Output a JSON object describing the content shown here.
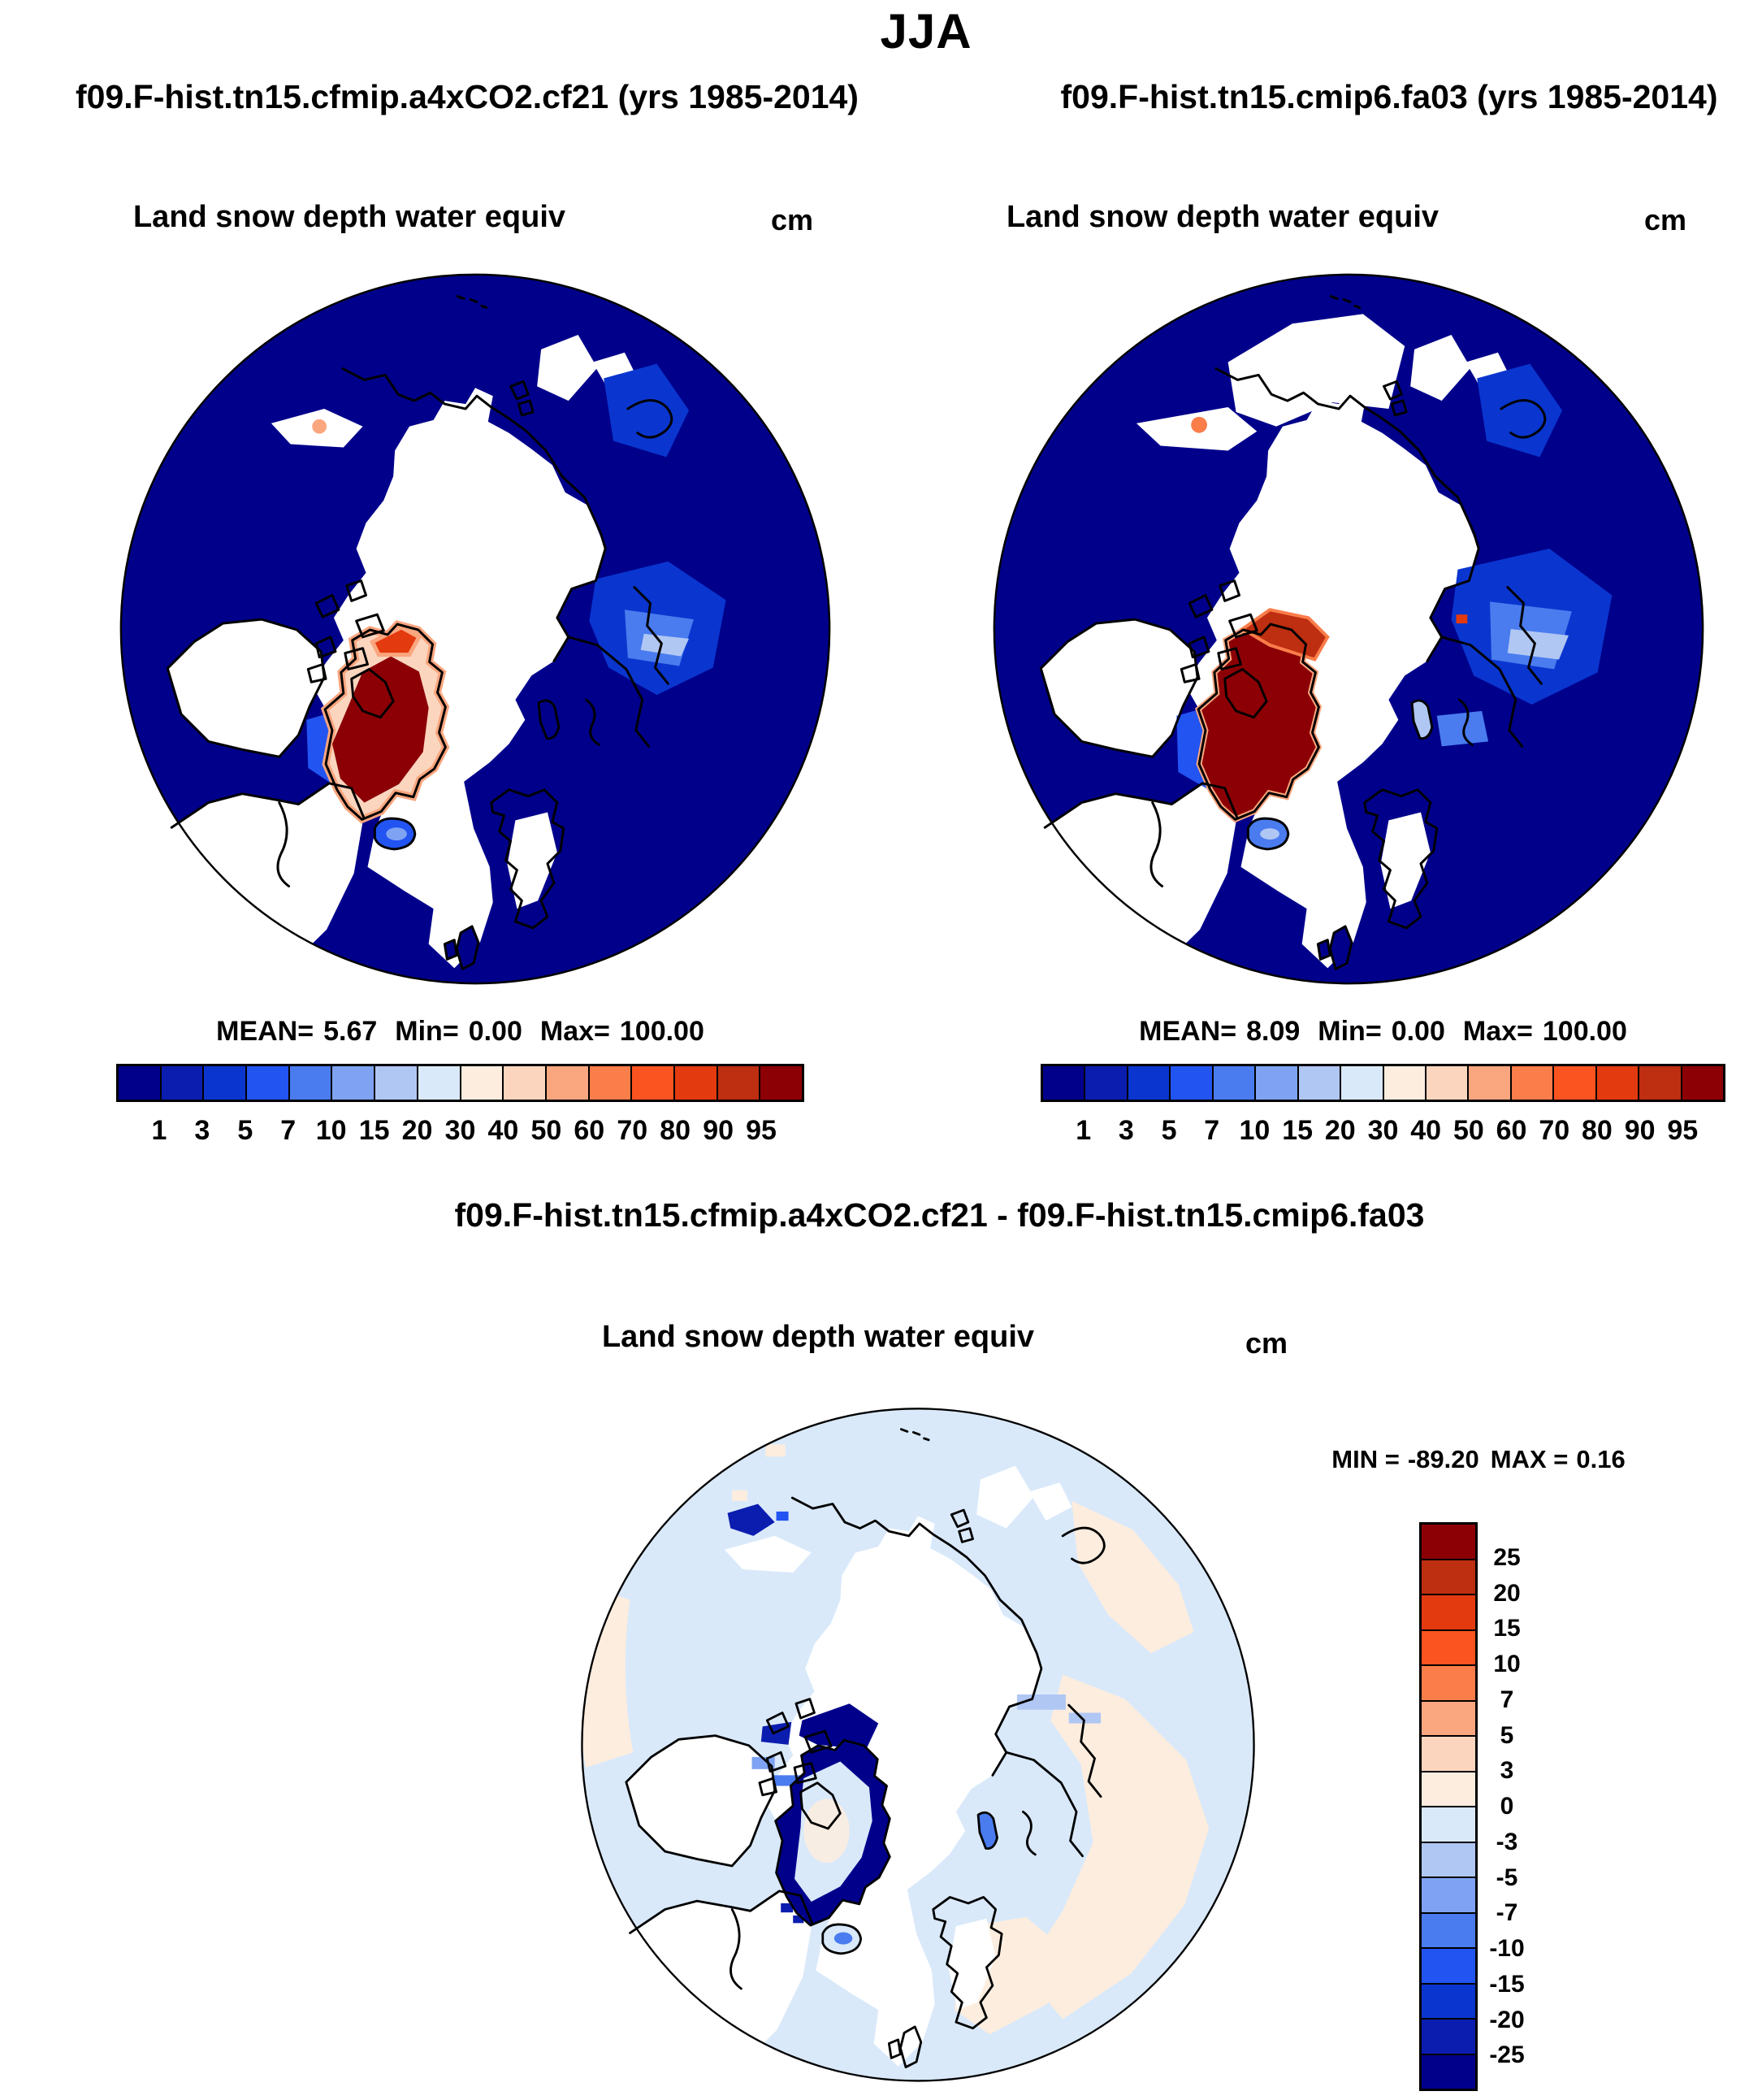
{
  "season": "JJA",
  "panels": {
    "left": {
      "run_title": "f09.F-hist.tn15.cfmip.a4xCO2.cf21 (yrs 1985-2014)",
      "field_title": "Land snow depth water equiv",
      "units": "cm",
      "stats": {
        "mean_label": "MEAN=",
        "mean": "5.67",
        "min_label": "Min=",
        "min": "0.00",
        "max_label": "Max=",
        "max": "100.00"
      }
    },
    "right": {
      "run_title": "f09.F-hist.tn15.cmip6.fa03 (yrs 1985-2014)",
      "field_title": "Land snow depth water equiv",
      "units": "cm",
      "stats": {
        "mean_label": "MEAN=",
        "mean": "8.09",
        "min_label": "Min=",
        "min": "0.00",
        "max_label": "Max=",
        "max": "100.00"
      }
    },
    "diff": {
      "run_title": "f09.F-hist.tn15.cfmip.a4xCO2.cf21 - f09.F-hist.tn15.cmip6.fa03",
      "field_title": "Land snow depth water equiv",
      "units": "cm",
      "stats": {
        "min_label": "MIN =",
        "min": "-89.20",
        "max_label": "MAX =",
        "max": "0.16"
      }
    }
  },
  "palette": [
    "#00008B",
    "#0B1DAF",
    "#0A36CF",
    "#2254F2",
    "#4A7CEF",
    "#7FA3F2",
    "#B0C7F4",
    "#D9E9FA",
    "#FDEDDE",
    "#FBD5BE",
    "#FAA67F",
    "#FA7D4A",
    "#FB5420",
    "#E43A0F",
    "#BE2E10",
    "#8C0005"
  ],
  "colorbars": {
    "main": {
      "orientation": "horizontal",
      "levels": [
        "1",
        "3",
        "5",
        "7",
        "10",
        "15",
        "20",
        "30",
        "40",
        "50",
        "60",
        "70",
        "80",
        "90",
        "95"
      ]
    },
    "diff": {
      "orientation": "vertical",
      "reverse": true,
      "levels": [
        "25",
        "20",
        "15",
        "10",
        "7",
        "5",
        "3",
        "0",
        "-3",
        "-5",
        "-7",
        "-10",
        "-15",
        "-20",
        "-25"
      ]
    }
  },
  "chart_data": [
    {
      "type": "heatmap",
      "panel": "top-left",
      "title": "f09.F-hist.tn15.cfmip.a4xCO2.cf21 (yrs 1985-2014)",
      "field": "Land snow depth water equiv",
      "units": "cm",
      "projection": "north polar stereographic",
      "stats": {
        "mean": 5.67,
        "min": 0.0,
        "max": 100.0
      },
      "contour_levels": [
        1,
        3,
        5,
        7,
        10,
        15,
        20,
        30,
        40,
        50,
        60,
        70,
        80,
        90,
        95
      ],
      "palette_direction": "dark blue (low) to dark red (high)",
      "legend_position": "horizontal bar below map",
      "notable_features": [
        "values >95 (dark red) over Greenland ice sheet with orange fringe",
        "lowest bin (dark navy) covering oceans and most low-elevation land",
        "white (below 1 / masked) over central Arctic, Alaska, northern Canada and Norwegian Sea",
        "light-to-medium blue patch over eastern Siberia uplands",
        "red strip over northern Canadian archipelago; Iceland shown as small blue patch"
      ]
    },
    {
      "type": "heatmap",
      "panel": "top-right",
      "title": "f09.F-hist.tn15.cmip6.fa03 (yrs 1985-2014)",
      "field": "Land snow depth water equiv",
      "units": "cm",
      "projection": "north polar stereographic",
      "stats": {
        "mean": 8.09,
        "min": 0.0,
        "max": 100.0
      },
      "contour_levels": [
        1,
        3,
        5,
        7,
        10,
        15,
        20,
        30,
        40,
        50,
        60,
        70,
        80,
        90,
        95
      ],
      "palette_direction": "dark blue (low) to dark red (high)",
      "legend_position": "horizontal bar below map",
      "notable_features": [
        "larger solid dark-red Greenland ice sheet extending to northern archipelago",
        "more extensive light blue over eastern Siberia",
        "Svalbard shown as light blue patch"
      ]
    },
    {
      "type": "heatmap",
      "panel": "bottom-difference",
      "title": "f09.F-hist.tn15.cfmip.a4xCO2.cf21 - f09.F-hist.tn15.cmip6.fa03",
      "field": "Land snow depth water equiv",
      "units": "cm",
      "projection": "north polar stereographic",
      "stats": {
        "min": -89.2,
        "max": 0.16
      },
      "contour_levels": [
        25,
        20,
        15,
        10,
        7,
        5,
        3,
        0,
        -3,
        -5,
        -7,
        -10,
        -15,
        -20,
        -25
      ],
      "palette_direction": "dark red (positive, top) to dark blue (negative, bottom)",
      "legend_position": "vertical bar at right",
      "notable_features": [
        "strong negative differences (< -25, dark navy) along Greenland ice-sheet margins and NE Canadian archipelago",
        "weak negative (0 to -3, pale blue) across most of the Arctic ocean sector",
        "weak positive (0 to 3, pale peach) over sub-polar oceans at map rim",
        "dark blue spots on north Siberian coast; blue patch on Svalbard and Iceland"
      ]
    }
  ]
}
